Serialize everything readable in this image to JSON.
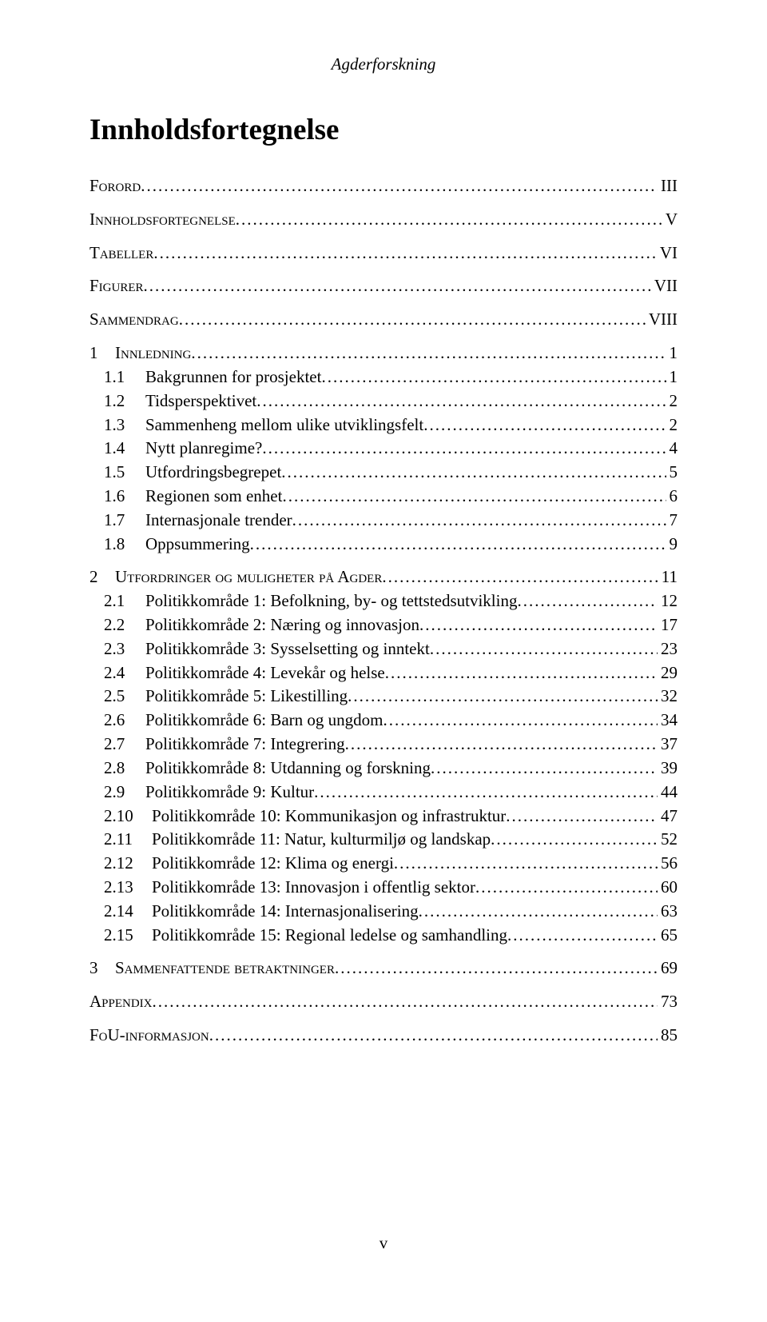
{
  "header": {
    "running": "Agderforskning"
  },
  "title": "Innholdsfortegnelse",
  "page_number": "v",
  "toc": {
    "front": [
      {
        "label_sc": "Forord",
        "page": "III"
      },
      {
        "label_sc": "Innholdsfortegnelse",
        "page": "V"
      },
      {
        "label_sc": "Tabeller",
        "page": "VI"
      },
      {
        "label_sc": "Figurer",
        "page": "VII"
      },
      {
        "label_sc": "Sammendrag",
        "page": "VIII"
      }
    ],
    "s1": {
      "num": "1",
      "label_sc": "Innledning",
      "page": "1",
      "items": [
        {
          "num": "1.1",
          "label": "Bakgrunnen for prosjektet",
          "page": "1"
        },
        {
          "num": "1.2",
          "label": "Tidsperspektivet",
          "page": "2"
        },
        {
          "num": "1.3",
          "label": "Sammenheng mellom ulike utviklingsfelt",
          "page": "2"
        },
        {
          "num": "1.4",
          "label": "Nytt planregime?",
          "page": "4"
        },
        {
          "num": "1.5",
          "label": "Utfordringsbegrepet",
          "page": "5"
        },
        {
          "num": "1.6",
          "label": "Regionen som enhet",
          "page": "6"
        },
        {
          "num": "1.7",
          "label": "Internasjonale trender",
          "page": "7"
        },
        {
          "num": "1.8",
          "label": "Oppsummering",
          "page": "9"
        }
      ]
    },
    "s2": {
      "num": "2",
      "label_sc": "Utfordringer og muligheter på Agder",
      "page": "11",
      "items": [
        {
          "num": "2.1",
          "label": "Politikkområde 1: Befolkning, by- og tettstedsutvikling",
          "page": "12"
        },
        {
          "num": "2.2",
          "label": "Politikkområde 2: Næring og innovasjon",
          "page": "17"
        },
        {
          "num": "2.3",
          "label": "Politikkområde 3: Sysselsetting og inntekt",
          "page": "23"
        },
        {
          "num": "2.4",
          "label": "Politikkområde 4: Levekår og helse",
          "page": "29"
        },
        {
          "num": "2.5",
          "label": "Politikkområde 5: Likestilling",
          "page": "32"
        },
        {
          "num": "2.6",
          "label": "Politikkområde 6: Barn og ungdom",
          "page": "34"
        },
        {
          "num": "2.7",
          "label": "Politikkområde 7: Integrering",
          "page": "37"
        },
        {
          "num": "2.8",
          "label": "Politikkområde 8: Utdanning og forskning",
          "page": "39"
        },
        {
          "num": "2.9",
          "label": "Politikkområde 9: Kultur",
          "page": "44"
        },
        {
          "num": "2.10",
          "label": "Politikkområde 10: Kommunikasjon og infrastruktur",
          "page": "47"
        },
        {
          "num": "2.11",
          "label": "Politikkområde 11: Natur, kulturmiljø og landskap",
          "page": "52"
        },
        {
          "num": "2.12",
          "label": "Politikkområde 12: Klima og energi",
          "page": "56"
        },
        {
          "num": "2.13",
          "label": "Politikkområde 13: Innovasjon i offentlig sektor",
          "page": "60"
        },
        {
          "num": "2.14",
          "label": "Politikkområde 14: Internasjonalisering",
          "page": "63"
        },
        {
          "num": "2.15",
          "label": "Politikkområde 15: Regional ledelse og samhandling",
          "page": "65"
        }
      ]
    },
    "s3": {
      "num": "3",
      "label_sc": "Sammenfattende betraktninger",
      "page": "69"
    },
    "back": [
      {
        "label_sc": "Appendix",
        "page": "73"
      },
      {
        "label_sc": "FoU-informasjon",
        "page": "85"
      }
    ]
  }
}
